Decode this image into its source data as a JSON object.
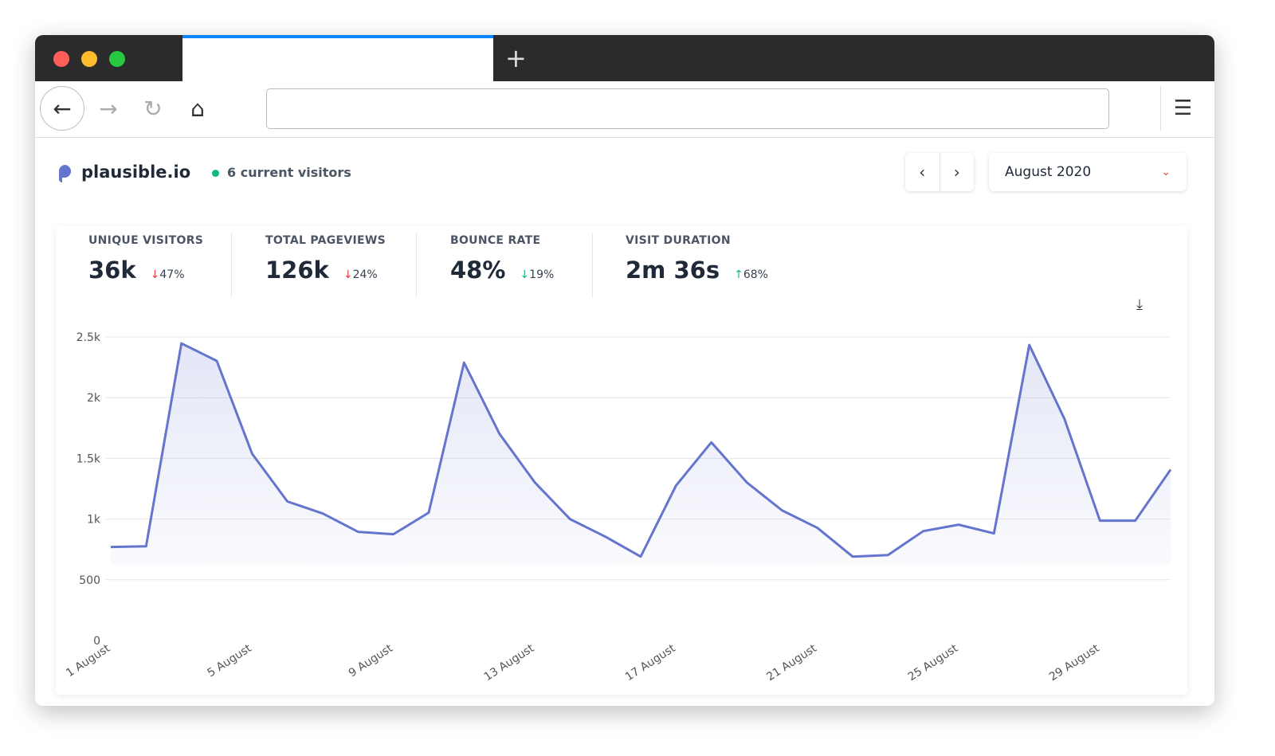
{
  "site": {
    "name": "plausible.io",
    "current_visitors": "6 current visitors"
  },
  "period": {
    "label": "August 2020",
    "prev_icon": "chevron-left-icon",
    "next_icon": "chevron-right-icon"
  },
  "stats": [
    {
      "label": "UNIQUE VISITORS",
      "value": "36k",
      "change": "47%",
      "direction": "down"
    },
    {
      "label": "TOTAL PAGEVIEWS",
      "value": "126k",
      "change": "24%",
      "direction": "down"
    },
    {
      "label": "BOUNCE RATE",
      "value": "48%",
      "change": "19%",
      "direction": "down"
    },
    {
      "label": "VISIT DURATION",
      "value": "2m 36s",
      "change": "68%",
      "direction": "up"
    }
  ],
  "colors": {
    "line": "#6574cd",
    "accent_red": "#e53e3e",
    "green": "#10b981",
    "tab_blue": "#0a84ff"
  },
  "chart_data": {
    "type": "area",
    "x": [
      "1 August",
      "2 August",
      "3 August",
      "4 August",
      "5 August",
      "6 August",
      "7 August",
      "8 August",
      "9 August",
      "10 August",
      "11 August",
      "12 August",
      "13 August",
      "14 August",
      "15 August",
      "16 August",
      "17 August",
      "18 August",
      "19 August",
      "20 August",
      "21 August",
      "22 August",
      "23 August",
      "24 August",
      "25 August",
      "26 August",
      "27 August",
      "28 August",
      "29 August",
      "30 August",
      "31 August"
    ],
    "values": [
      770,
      776,
      2447,
      2303,
      1539,
      1145,
      1046,
      895,
      875,
      1053,
      2289,
      1704,
      1303,
      1000,
      855,
      691,
      1276,
      1632,
      1303,
      1072,
      928,
      691,
      704,
      901,
      954,
      882,
      2434,
      1822,
      987,
      987,
      1408
    ],
    "xticks": [
      "1 August",
      "5 August",
      "9 August",
      "13 August",
      "17 August",
      "21 August",
      "25 August",
      "29 August"
    ],
    "yticks": [
      "0",
      "500",
      "1k",
      "1.5k",
      "2k",
      "2.5k"
    ],
    "ylim": [
      0,
      2500
    ],
    "grid": true
  }
}
